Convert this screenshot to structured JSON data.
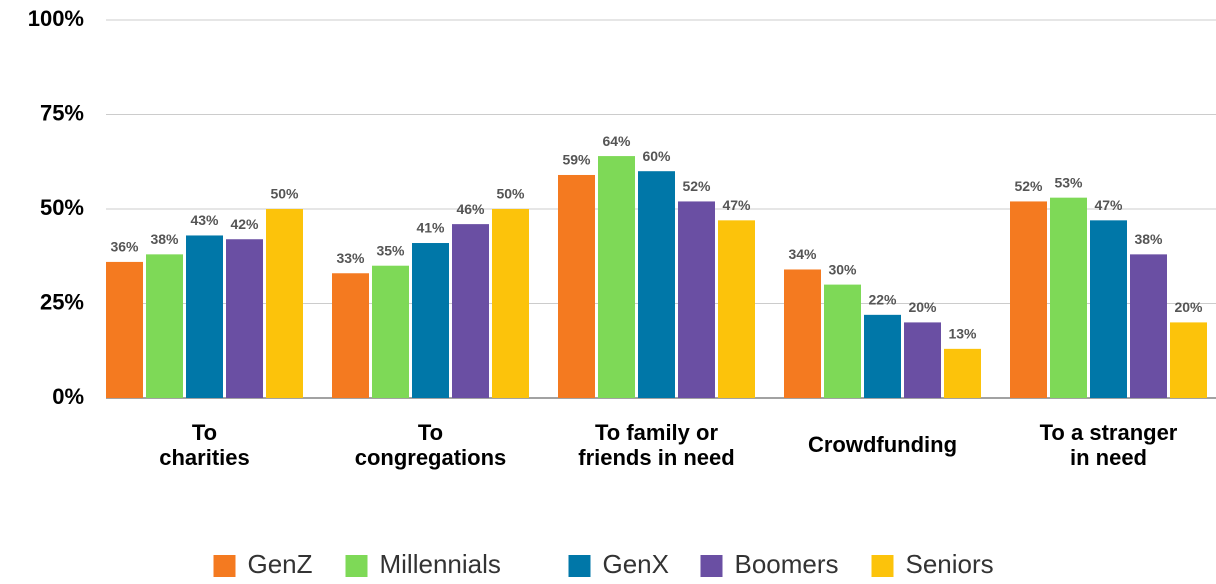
{
  "chart_data": {
    "type": "bar",
    "categories": [
      "To\ncharities",
      "To\ncongregations",
      "To family or\nfriends in need",
      "Crowdfunding",
      "To a stranger\nin need"
    ],
    "series": [
      {
        "name": "GenZ",
        "color": "#f47a20",
        "values": [
          36,
          33,
          59,
          34,
          52
        ],
        "value_labels": [
          "36%",
          "33%",
          "59%",
          "34%",
          "52%"
        ]
      },
      {
        "name": "Millennials",
        "color": "#7ed957",
        "values": [
          38,
          35,
          64,
          30,
          53
        ],
        "value_labels": [
          "38%",
          "35%",
          "64%",
          "30%",
          "53%"
        ]
      },
      {
        "name": "GenX",
        "color": "#0077a8",
        "values": [
          43,
          41,
          60,
          22,
          47
        ],
        "value_labels": [
          "43%",
          "41%",
          "60%",
          "22%",
          "47%"
        ]
      },
      {
        "name": "Boomers",
        "color": "#6a4fa3",
        "values": [
          42,
          46,
          52,
          20,
          38
        ],
        "value_labels": [
          "42%",
          "46%",
          "52%",
          "20%",
          "38%"
        ]
      },
      {
        "name": "Seniors",
        "color": "#fcc30b",
        "values": [
          50,
          50,
          47,
          13,
          20
        ],
        "value_labels": [
          "50%",
          "50%",
          "47%",
          "13%",
          "20%"
        ]
      }
    ],
    "ylim": [
      0,
      100
    ],
    "yticks": [
      {
        "value": 0,
        "label": "0%"
      },
      {
        "value": 25,
        "label": "25%"
      },
      {
        "value": 50,
        "label": "50%"
      },
      {
        "value": 75,
        "label": "75%"
      },
      {
        "value": 100,
        "label": "100%"
      }
    ],
    "grid": true,
    "legend": "bottom"
  }
}
